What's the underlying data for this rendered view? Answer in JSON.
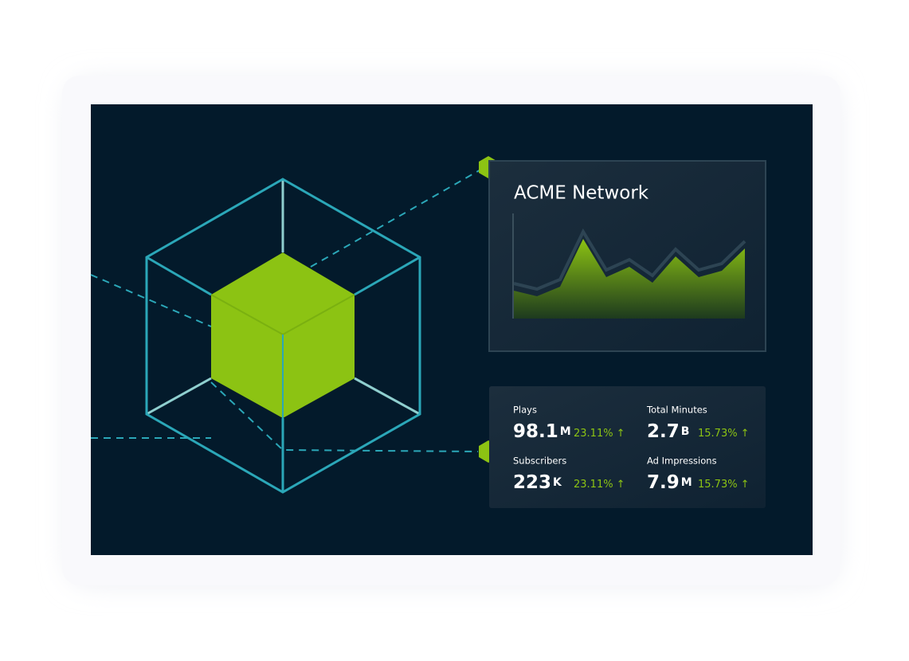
{
  "chart_panel": {
    "title": "ACME Network",
    "chart": {
      "type": "area",
      "values": [
        35,
        28,
        40,
        100,
        52,
        65,
        45,
        78,
        52,
        60,
        88
      ]
    }
  },
  "metrics": [
    {
      "label": "Plays",
      "value": "98.1",
      "unit": "M",
      "change": "23.11%",
      "arrow": "↑"
    },
    {
      "label": "Total Minutes",
      "value": "2.7",
      "unit": "B",
      "change": "15.73%",
      "arrow": "↑"
    },
    {
      "label": "Subscribers",
      "value": "223",
      "unit": "K",
      "change": "23.11%",
      "arrow": "↑"
    },
    {
      "label": "Ad Impressions",
      "value": "7.9",
      "unit": "M",
      "change": "15.73%",
      "arrow": "↑"
    }
  ]
}
